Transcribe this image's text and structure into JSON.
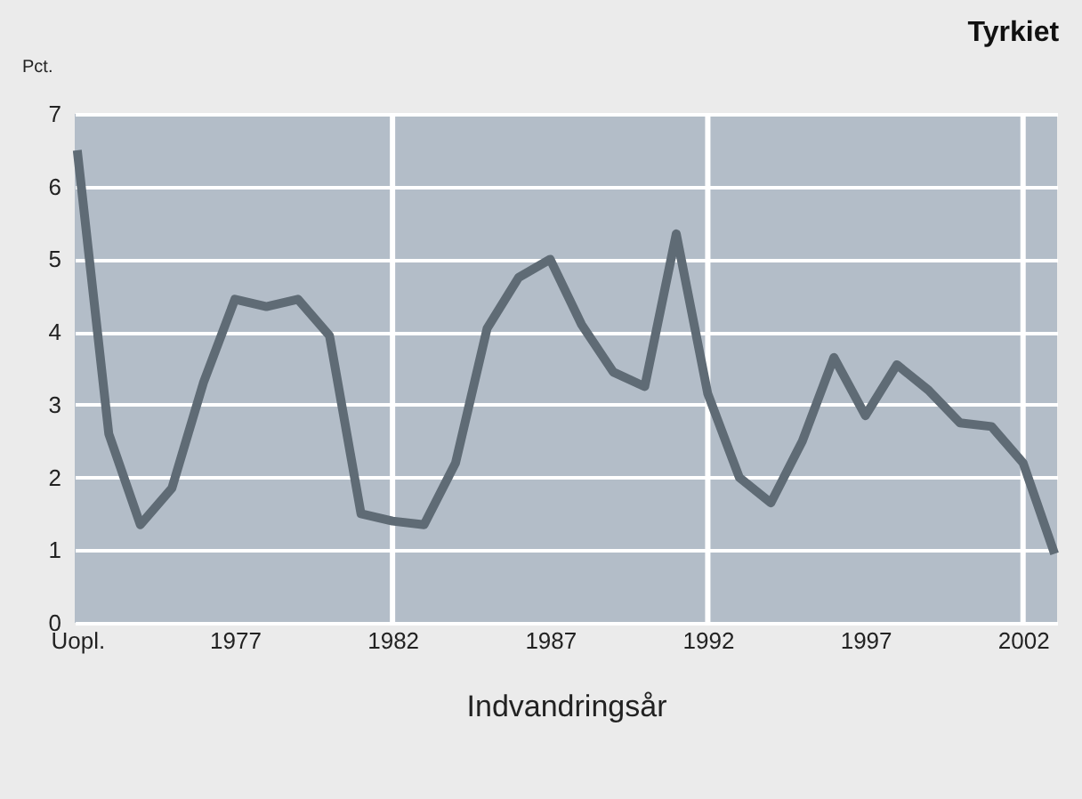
{
  "chart_data": {
    "type": "line",
    "title": "Tyrkiet",
    "xlabel": "Indvandringsår",
    "ylabel": "Pct.",
    "categories": [
      "Uopl.",
      null,
      null,
      null,
      null,
      "1977",
      null,
      null,
      null,
      null,
      "1982",
      null,
      null,
      null,
      null,
      "1987",
      null,
      null,
      null,
      null,
      "1992",
      null,
      null,
      null,
      null,
      "1997",
      null,
      null,
      null,
      null,
      "2002",
      null
    ],
    "series": [
      {
        "color": "#5f6b75",
        "values": [
          6.5,
          2.6,
          1.35,
          1.85,
          3.3,
          4.45,
          4.35,
          4.45,
          3.95,
          1.5,
          1.4,
          1.35,
          2.2,
          4.05,
          4.75,
          5.0,
          4.1,
          3.45,
          3.25,
          5.35,
          3.15,
          2.0,
          1.65,
          2.5,
          3.65,
          2.85,
          3.55,
          3.2,
          2.75,
          2.7,
          2.2,
          0.95
        ]
      }
    ],
    "ylim": [
      0,
      7
    ],
    "yticks": [
      0,
      1,
      2,
      3,
      4,
      5,
      6,
      7
    ],
    "grid": "y",
    "marker": "none",
    "line_style": "solid",
    "ref_lines": [
      {
        "axis": "x",
        "value": "1982",
        "color": "#ffffff"
      },
      {
        "axis": "x",
        "value": "1992",
        "color": "#ffffff"
      },
      {
        "axis": "x",
        "value": "2002",
        "color": "#ffffff"
      }
    ]
  }
}
